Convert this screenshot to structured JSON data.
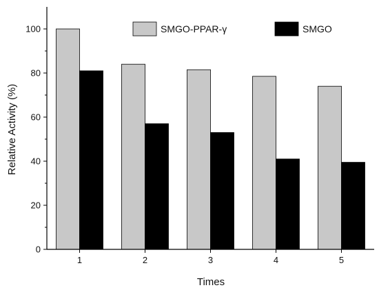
{
  "chart_data": {
    "type": "bar",
    "title": "",
    "xlabel": "Times",
    "ylabel": "Relative Activity (%)",
    "categories": [
      "1",
      "2",
      "3",
      "4",
      "5"
    ],
    "series": [
      {
        "name": "SMGO-PPAR-γ",
        "values": [
          100,
          84,
          81.5,
          78.5,
          74
        ],
        "color": "#c8c8c8"
      },
      {
        "name": "SMGO",
        "values": [
          81,
          57,
          53,
          41,
          39.5
        ],
        "color": "#000000"
      }
    ],
    "ylim": [
      0,
      110
    ],
    "yticks": [
      "0",
      "20",
      "40",
      "60",
      "80",
      "100"
    ],
    "grid": false,
    "legend_position": "top-right"
  }
}
